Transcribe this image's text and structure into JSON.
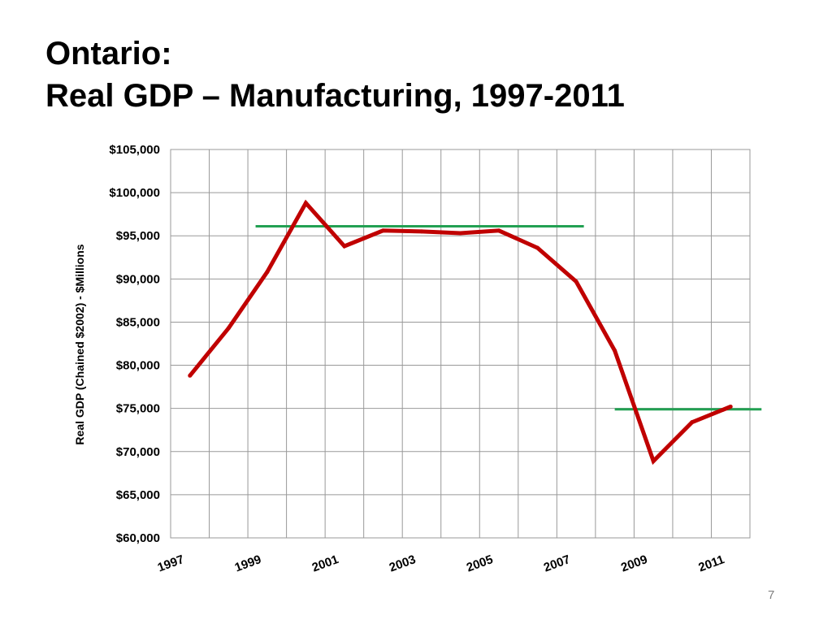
{
  "slide": {
    "title_line1": "Ontario:",
    "title_line2": "Real GDP – Manufacturing, 1997-2011",
    "page_number": "7"
  },
  "chart_data": {
    "type": "line",
    "title": "",
    "xlabel": "",
    "ylabel": "Real GDP (Chained $2002) - $Millions",
    "x": [
      1997,
      1998,
      1999,
      2000,
      2001,
      2002,
      2003,
      2004,
      2005,
      2006,
      2007,
      2008,
      2009,
      2010,
      2011
    ],
    "x_tick_labels": [
      "1997",
      "1999",
      "2001",
      "2003",
      "2005",
      "2007",
      "2009",
      "2011"
    ],
    "ylim": [
      60000,
      105000
    ],
    "y_tick_values": [
      60000,
      65000,
      70000,
      75000,
      80000,
      85000,
      90000,
      95000,
      100000,
      105000
    ],
    "y_tick_labels": [
      "$60,000",
      "$65,000",
      "$70,000",
      "$75,000",
      "$80,000",
      "$85,000",
      "$90,000",
      "$95,000",
      "$100,000",
      "$105,000"
    ],
    "grid": true,
    "legend": "none",
    "series": [
      {
        "values": [
          78800,
          84300,
          90800,
          98800,
          93800,
          95600,
          95500,
          95300,
          95600,
          93600,
          89700,
          81700,
          68900,
          73400,
          75200
        ],
        "color": "#c00000"
      }
    ],
    "reference_lines": [
      {
        "y": 96100,
        "x_start": 1998.7,
        "x_end": 2007.2,
        "color": "#22a052"
      },
      {
        "y": 74900,
        "x_start": 2008.0,
        "x_end": 2011.8,
        "color": "#22a052"
      }
    ]
  }
}
